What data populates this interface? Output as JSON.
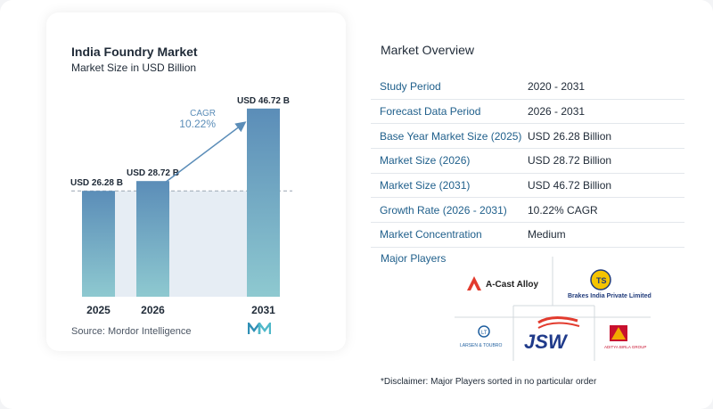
{
  "chart_data": {
    "type": "bar",
    "title": "India Foundry Market",
    "subtitle": "Market Size in USD Billion",
    "categories": [
      "2025",
      "2026",
      "2031"
    ],
    "values": [
      26.28,
      28.72,
      46.72
    ],
    "value_labels": [
      "USD 26.28 B",
      "USD 28.72 B",
      "USD 46.72 B"
    ],
    "cagr_label": "CAGR",
    "cagr_value": "10.22%",
    "colors": {
      "bar_top": "#5b8db8",
      "bar_bottom": "#8ec9d0",
      "shade": "#e6edf4",
      "arrow": "#5b8db8"
    }
  },
  "source": "Source:  Mordor Intelligence",
  "overview": {
    "title": "Market Overview",
    "rows": [
      {
        "label": "Study Period",
        "value": "2020 - 2031"
      },
      {
        "label": "Forecast Data Period",
        "value": "2026 - 2031"
      },
      {
        "label": "Base Year Market Size (2025)",
        "value": "USD 26.28 Billion"
      },
      {
        "label": "Market Size (2026)",
        "value": "USD 28.72 Billion"
      },
      {
        "label": "Market Size (2031)",
        "value": "USD 46.72 Billion"
      },
      {
        "label": "Growth Rate (2026 - 2031)",
        "value": "10.22% CAGR"
      },
      {
        "label": "Market Concentration",
        "value": "Medium"
      }
    ]
  },
  "players": {
    "title": "Major Players",
    "logos": [
      "A-Cast Alloy",
      "Brakes India Private Limited",
      "JSW",
      "LARSEN & TOUBRO",
      "ADITYA BIRLA GROUP"
    ]
  },
  "disclaimer": "*Disclaimer: Major Players sorted in no particular order"
}
